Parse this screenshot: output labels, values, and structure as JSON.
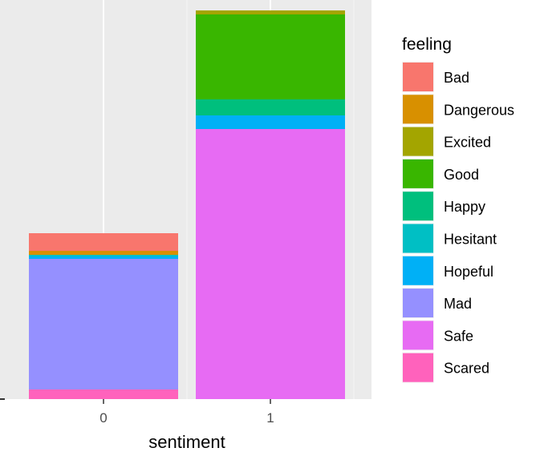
{
  "chart_data": {
    "type": "bar",
    "stacked": true,
    "categories": [
      "0",
      "1"
    ],
    "xlabel": "sentiment",
    "ylabel": "",
    "legend": {
      "title": "feeling",
      "position": "right"
    },
    "grid": true,
    "ylim": [
      0,
      485
    ],
    "series": [
      {
        "name": "Bad",
        "color": "#F8766D",
        "values": [
          22,
          0
        ]
      },
      {
        "name": "Dangerous",
        "color": "#D89000",
        "values": [
          5,
          0
        ]
      },
      {
        "name": "Excited",
        "color": "#A3A500",
        "values": [
          0,
          5
        ]
      },
      {
        "name": "Good",
        "color": "#39B600",
        "values": [
          0,
          106
        ]
      },
      {
        "name": "Happy",
        "color": "#00BF7D",
        "values": [
          0,
          20
        ]
      },
      {
        "name": "Hesitant",
        "color": "#00BFC4",
        "values": [
          2,
          0
        ]
      },
      {
        "name": "Hopeful",
        "color": "#00B0F6",
        "values": [
          3,
          17
        ]
      },
      {
        "name": "Mad",
        "color": "#9590FF",
        "values": [
          163,
          0
        ]
      },
      {
        "name": "Safe",
        "color": "#E76BF3",
        "values": [
          0,
          337
        ]
      },
      {
        "name": "Scared",
        "color": "#FF62BC",
        "values": [
          12,
          0
        ]
      }
    ]
  }
}
